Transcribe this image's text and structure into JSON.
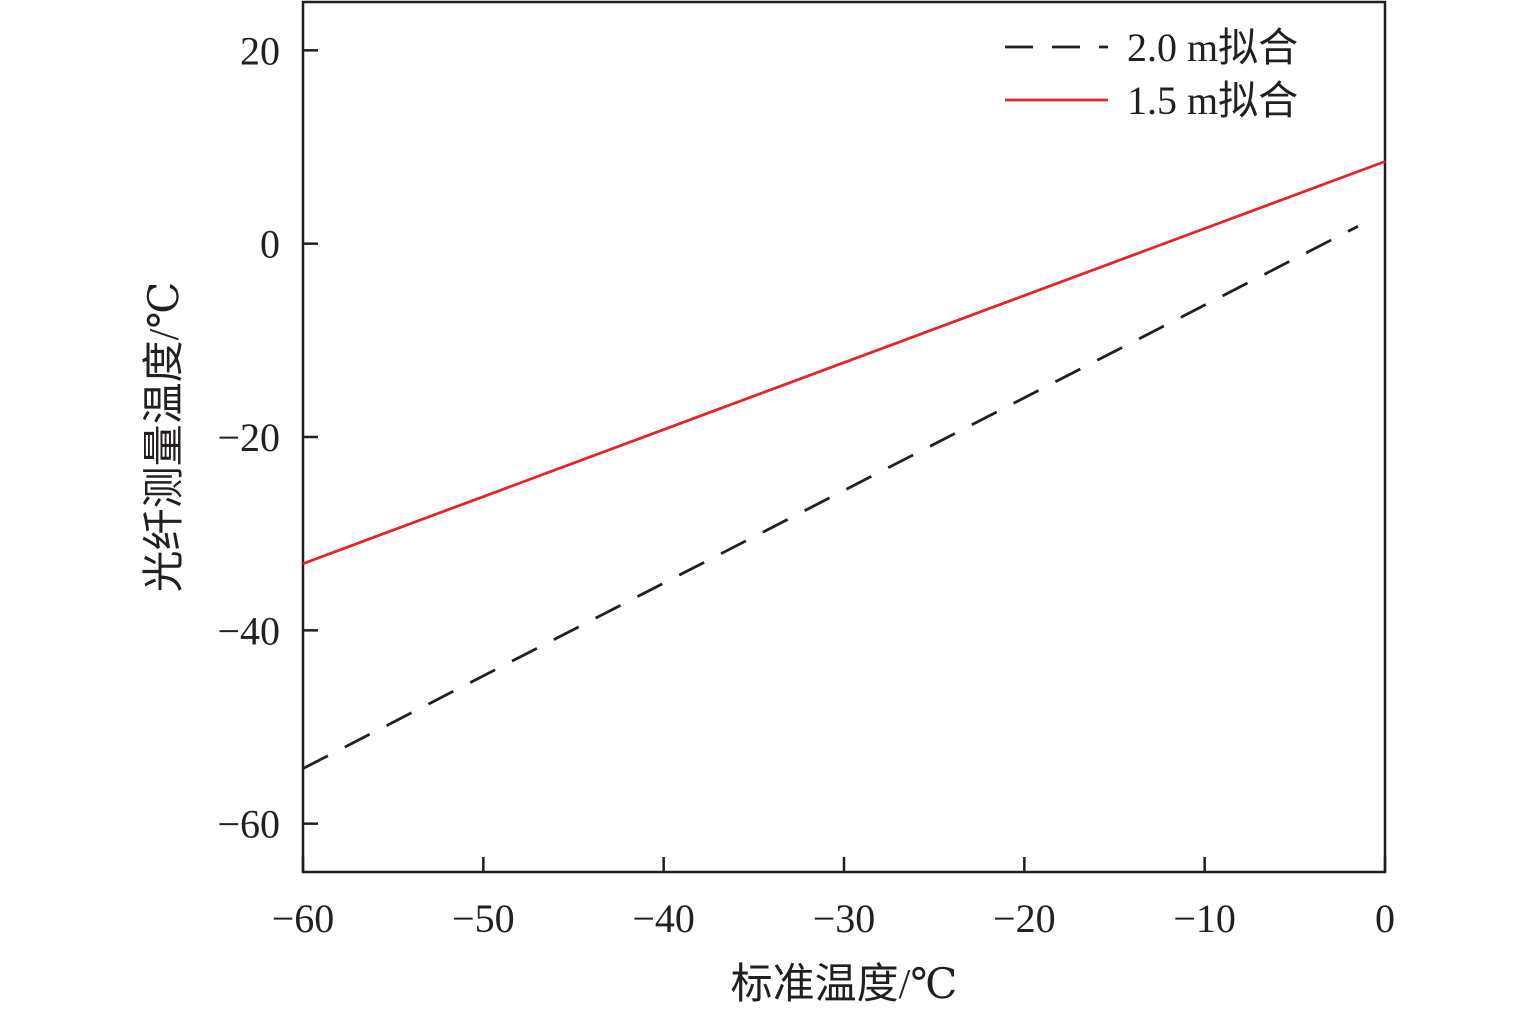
{
  "chart_data": {
    "type": "line",
    "title": "",
    "xlabel": "标准温度/℃",
    "ylabel": "光纤测量温度/℃",
    "xlim": [
      -60,
      0
    ],
    "ylim": [
      -65,
      25
    ],
    "xticks": [
      -60,
      -50,
      -40,
      -30,
      -20,
      -10,
      0
    ],
    "yticks": [
      -60,
      -40,
      -20,
      0,
      20
    ],
    "xtick_labels": [
      "−60",
      "−50",
      "−40",
      "−30",
      "−20",
      "−10",
      "0"
    ],
    "ytick_labels": [
      "−60",
      "−40",
      "−20",
      "0",
      "20"
    ],
    "grid": false,
    "legend_position": "top-right",
    "series": [
      {
        "name": "2.0 m拟合",
        "style": "dashed",
        "color": "#231f20",
        "x": [
          -60,
          -1.5
        ],
        "y": [
          -54.3,
          1.8
        ]
      },
      {
        "name": "1.5 m拟合",
        "style": "solid",
        "color": "#e0262c",
        "x": [
          -60,
          0
        ],
        "y": [
          -33.1,
          8.5
        ]
      }
    ]
  }
}
